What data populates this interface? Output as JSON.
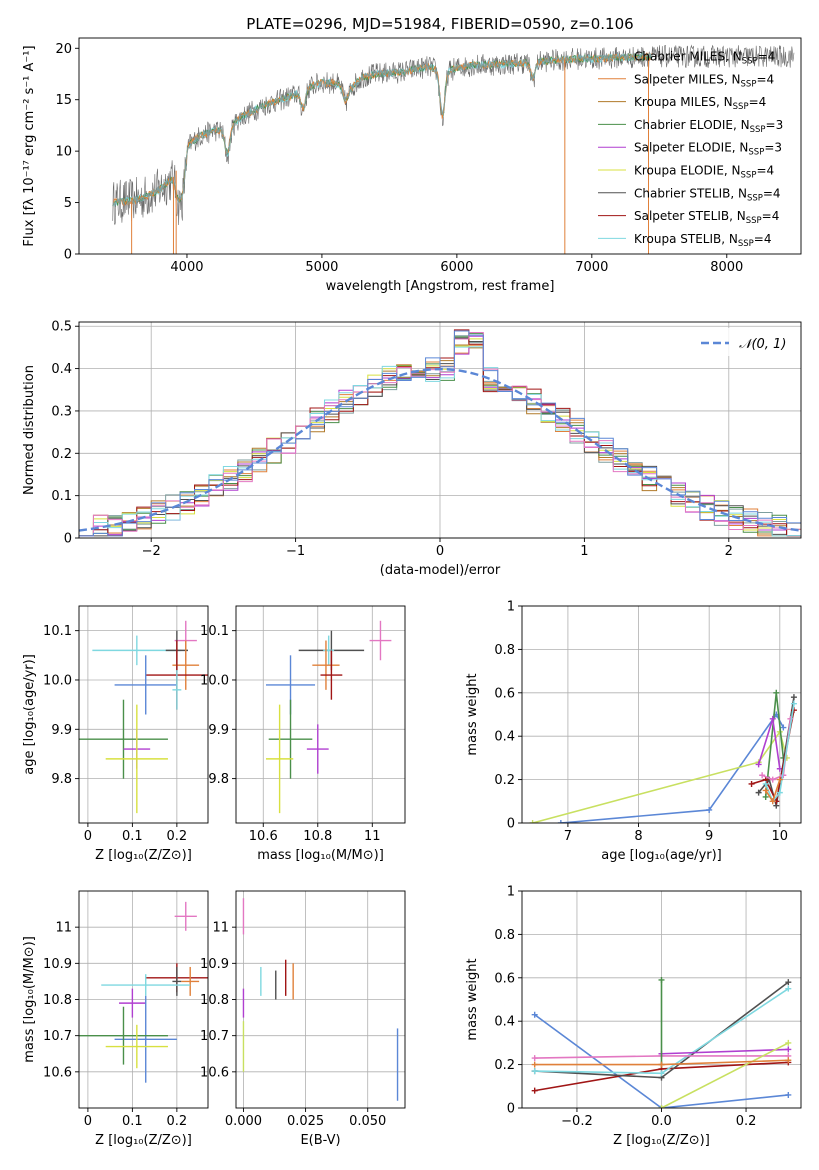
{
  "colors": {
    "c_miles": "#7e9e9e",
    "s_miles": "#e0803a",
    "k_miles": "#b07a2a",
    "c_elodie": "#4a8f4a",
    "s_elodie": "#b03fd0",
    "k_elodie": "#d8e040",
    "c_stelib": "#505050",
    "s_stelib": "#a01515",
    "k_stelib": "#7fd8e0",
    "blue": "#5b87d6",
    "pink": "#e377c2",
    "lime": "#c8e060",
    "cyan": "#80d8e0"
  },
  "chart_data": [
    {
      "id": "spectrum",
      "type": "line",
      "title": "PLATE=0296, MJD=51984, FIBERID=0590, z=0.106",
      "xlabel": "wavelength [Angstrom, rest frame]",
      "ylabel": "Flux [fλ 10⁻¹⁷ erg cm⁻² s⁻¹ A⁻¹]",
      "xlim": [
        3200,
        8550
      ],
      "ylim": [
        0,
        21
      ],
      "xticks": [
        4000,
        5000,
        6000,
        7000,
        8000
      ],
      "yticks": [
        0,
        5,
        10,
        15,
        20
      ],
      "grid": false,
      "legend_position": "top-right",
      "legend": [
        {
          "text": "Chabrier MILES, N",
          "sub": "SSP",
          "tail": "=4",
          "color": "c_miles"
        },
        {
          "text": "Salpeter MILES, N",
          "sub": "SSP",
          "tail": "=4",
          "color": "s_miles"
        },
        {
          "text": "Kroupa MILES, N",
          "sub": "SSP",
          "tail": "=4",
          "color": "k_miles"
        },
        {
          "text": "Chabrier ELODIE, N",
          "sub": "SSP",
          "tail": "=3",
          "color": "c_elodie"
        },
        {
          "text": "Salpeter ELODIE, N",
          "sub": "SSP",
          "tail": "=3",
          "color": "s_elodie"
        },
        {
          "text": "Kroupa ELODIE, N",
          "sub": "SSP",
          "tail": "=4",
          "color": "k_elodie"
        },
        {
          "text": "Chabrier STELIB, N",
          "sub": "SSP",
          "tail": "=4",
          "color": "c_stelib"
        },
        {
          "text": "Salpeter STELIB, N",
          "sub": "SSP",
          "tail": "=4",
          "color": "s_stelib"
        },
        {
          "text": "Kroupa STELIB, N",
          "sub": "SSP",
          "tail": "=4",
          "color": "k_stelib"
        }
      ],
      "continuum": {
        "x": [
          3450,
          3600,
          3700,
          3800,
          3900,
          3950,
          4000,
          4100,
          4200,
          4300,
          4400,
          4500,
          4600,
          4700,
          4800,
          4900,
          5000,
          5100,
          5200,
          5300,
          5400,
          5500,
          5600,
          5700,
          5800,
          5900,
          6000,
          6100,
          6200,
          6300,
          6400,
          6500,
          6600,
          6700,
          6800,
          6900,
          7000,
          7100,
          7200,
          7300,
          7400
        ],
        "y": [
          5.0,
          5.2,
          5.6,
          6.3,
          7.5,
          9.0,
          10.5,
          11.5,
          12.0,
          12.0,
          13.3,
          14.0,
          14.6,
          15.0,
          15.5,
          16.2,
          16.7,
          16.6,
          15.9,
          17.2,
          17.5,
          17.6,
          17.7,
          18.0,
          18.2,
          17.6,
          18.1,
          18.3,
          18.4,
          18.4,
          18.5,
          18.6,
          18.7,
          18.8,
          18.9,
          19.0,
          19.0,
          19.0,
          19.1,
          19.1,
          19.2
        ]
      },
      "absorption_dips": [
        {
          "x": 3934,
          "y": 5.5
        },
        {
          "x": 3969,
          "y": 6.0
        },
        {
          "x": 4300,
          "y": 9.5
        },
        {
          "x": 4861,
          "y": 14.0
        },
        {
          "x": 5175,
          "y": 14.8
        },
        {
          "x": 5893,
          "y": 13.0
        },
        {
          "x": 6563,
          "y": 17.0
        }
      ],
      "spikes": [
        {
          "x": 3590,
          "y": 0
        },
        {
          "x": 3900,
          "y": 0
        },
        {
          "x": 3920,
          "y": 0
        },
        {
          "x": 6800,
          "y": 0
        },
        {
          "x": 7420,
          "y": 0
        }
      ]
    },
    {
      "id": "residuals",
      "type": "step-histogram",
      "xlabel": "(data-model)/error",
      "ylabel": "Normed distribution",
      "xlim": [
        -2.5,
        2.5
      ],
      "ylim": [
        0,
        0.51
      ],
      "xticks": [
        -2,
        -1,
        0,
        1,
        2
      ],
      "yticks": [
        0.0,
        0.1,
        0.2,
        0.3,
        0.4,
        0.5
      ],
      "grid": true,
      "legend_position": "top-right",
      "reference_label": "𝒩(0, 1)",
      "reference_color": "blue",
      "bin_width": 0.1,
      "bin_start": -2.5,
      "series": [
        {
          "name": "Chabrier MILES",
          "color": "c_miles"
        },
        {
          "name": "Salpeter MILES",
          "color": "s_miles"
        },
        {
          "name": "Kroupa MILES",
          "color": "k_miles"
        },
        {
          "name": "Chabrier ELODIE",
          "color": "c_elodie"
        },
        {
          "name": "Salpeter ELODIE",
          "color": "s_elodie"
        },
        {
          "name": "Kroupa ELODIE",
          "color": "k_elodie"
        },
        {
          "name": "Chabrier STELIB",
          "color": "c_stelib"
        },
        {
          "name": "Salpeter STELIB",
          "color": "s_stelib"
        },
        {
          "name": "Kroupa STELIB",
          "color": "k_stelib"
        },
        {
          "name": "pink",
          "color": "pink"
        },
        {
          "name": "blue",
          "color": "blue"
        }
      ]
    },
    {
      "id": "age_vs_Z",
      "type": "errorbar",
      "xlabel": "Z [log₁₀(Z/Z⊙)]",
      "ylabel": "age  [log₁₀(age/yr)]",
      "xlim": [
        -0.02,
        0.27
      ],
      "ylim": [
        9.71,
        10.15
      ],
      "xticks": [
        0.0,
        0.1,
        0.2
      ],
      "ytick_labels": [
        "9.8",
        "9.9",
        "10.0",
        "10.1"
      ],
      "yticks": [
        9.8,
        9.9,
        10.0,
        10.1
      ],
      "grid": true,
      "points": [
        {
          "x": 0.22,
          "y": 10.08,
          "xe": 0.025,
          "ye": 0.04,
          "color": "pink"
        },
        {
          "x": 0.11,
          "y": 10.06,
          "xe": 0.1,
          "ye": 0.03,
          "color": "k_stelib"
        },
        {
          "x": 0.2,
          "y": 10.06,
          "xe": 0.025,
          "ye": 0.04,
          "color": "c_stelib"
        },
        {
          "x": 0.22,
          "y": 10.03,
          "xe": 0.03,
          "ye": 0.05,
          "color": "s_miles"
        },
        {
          "x": 0.2,
          "y": 10.01,
          "xe": 0.07,
          "ye": 0.07,
          "color": "s_stelib"
        },
        {
          "x": 0.13,
          "y": 9.99,
          "xe": 0.07,
          "ye": 0.06,
          "color": "blue"
        },
        {
          "x": 0.2,
          "y": 9.98,
          "xe": 0.01,
          "ye": 0.04,
          "color": "k_stelib"
        },
        {
          "x": 0.08,
          "y": 9.88,
          "xe": 0.1,
          "ye": 0.08,
          "color": "c_elodie"
        },
        {
          "x": 0.11,
          "y": 9.86,
          "xe": 0.03,
          "ye": 0.04,
          "color": "s_elodie"
        },
        {
          "x": 0.11,
          "y": 9.84,
          "xe": 0.07,
          "ye": 0.11,
          "color": "k_elodie"
        }
      ]
    },
    {
      "id": "age_vs_mass",
      "type": "errorbar",
      "xlabel": "mass [log₁₀(M/M⊙)]",
      "ylabel": "",
      "xlim": [
        10.5,
        11.12
      ],
      "ylim": [
        9.71,
        10.15
      ],
      "xticks": [
        10.6,
        10.8,
        11.0
      ],
      "ytick_labels": [
        "9.8",
        "9.9",
        "10.0",
        "10.1"
      ],
      "yticks": [
        9.8,
        9.9,
        10.0,
        10.1
      ],
      "grid": true,
      "points": [
        {
          "x": 11.03,
          "y": 10.08,
          "xe": 0.04,
          "ye": 0.04,
          "color": "pink"
        },
        {
          "x": 10.85,
          "y": 10.06,
          "xe": 0.12,
          "ye": 0.04,
          "color": "c_stelib"
        },
        {
          "x": 10.84,
          "y": 10.06,
          "xe": 0.02,
          "ye": 0.03,
          "color": "k_stelib"
        },
        {
          "x": 10.83,
          "y": 10.03,
          "xe": 0.05,
          "ye": 0.05,
          "color": "s_miles"
        },
        {
          "x": 10.85,
          "y": 10.01,
          "xe": 0.04,
          "ye": 0.05,
          "color": "s_stelib"
        },
        {
          "x": 10.7,
          "y": 9.99,
          "xe": 0.09,
          "ye": 0.06,
          "color": "blue"
        },
        {
          "x": 10.7,
          "y": 9.88,
          "xe": 0.08,
          "ye": 0.08,
          "color": "c_elodie"
        },
        {
          "x": 10.8,
          "y": 9.86,
          "xe": 0.04,
          "ye": 0.05,
          "color": "s_elodie"
        },
        {
          "x": 10.66,
          "y": 9.84,
          "xe": 0.05,
          "ye": 0.11,
          "color": "k_elodie"
        }
      ]
    },
    {
      "id": "weight_vs_age",
      "type": "line",
      "xlabel": "age  [log₁₀(age/yr)]",
      "ylabel": "mass weight",
      "xlim": [
        6.35,
        10.3
      ],
      "ylim": [
        0,
        1
      ],
      "xticks": [
        7,
        8,
        9,
        10
      ],
      "yticks": [
        0.0,
        0.2,
        0.4,
        0.6,
        0.8,
        1.0
      ],
      "grid": true,
      "series": [
        {
          "color": "blue",
          "x": [
            6.9,
            9.0,
            9.95,
            10.05
          ],
          "y": [
            0.0,
            0.06,
            0.5,
            0.44
          ]
        },
        {
          "color": "lime",
          "x": [
            6.5,
            9.7,
            10.0,
            10.1
          ],
          "y": [
            0.0,
            0.28,
            0.42,
            0.3
          ]
        },
        {
          "color": "c_elodie",
          "x": [
            9.8,
            9.95,
            10.05
          ],
          "y": [
            0.12,
            0.6,
            0.3
          ]
        },
        {
          "color": "s_elodie",
          "x": [
            9.7,
            9.9,
            10.0
          ],
          "y": [
            0.27,
            0.48,
            0.25
          ]
        },
        {
          "color": "c_stelib",
          "x": [
            9.7,
            9.85,
            9.95,
            10.2
          ],
          "y": [
            0.14,
            0.2,
            0.08,
            0.58
          ]
        },
        {
          "color": "s_stelib",
          "x": [
            9.6,
            9.8,
            9.95,
            10.2
          ],
          "y": [
            0.18,
            0.2,
            0.1,
            0.52
          ]
        },
        {
          "color": "pink",
          "x": [
            9.75,
            9.9,
            10.05,
            10.15
          ],
          "y": [
            0.22,
            0.2,
            0.22,
            0.48
          ]
        },
        {
          "color": "k_stelib",
          "x": [
            9.8,
            9.9,
            10.0,
            10.2
          ],
          "y": [
            0.18,
            0.1,
            0.14,
            0.55
          ]
        },
        {
          "color": "s_miles",
          "x": [
            9.8,
            9.9,
            10.0
          ],
          "y": [
            0.15,
            0.1,
            0.2
          ]
        }
      ]
    },
    {
      "id": "mass_vs_Z",
      "type": "errorbar",
      "xlabel": "Z [log₁₀(Z/Z⊙)]",
      "ylabel": "mass [log₁₀(M/M⊙)]",
      "xlim": [
        -0.02,
        0.27
      ],
      "ylim": [
        10.5,
        11.1
      ],
      "xticks": [
        0.0,
        0.1,
        0.2
      ],
      "yticks": [
        10.6,
        10.7,
        10.8,
        10.9,
        11.0
      ],
      "grid": true,
      "points": [
        {
          "x": 0.22,
          "y": 11.03,
          "xe": 0.025,
          "ye": 0.04,
          "color": "pink"
        },
        {
          "x": 0.2,
          "y": 10.86,
          "xe": 0.07,
          "ye": 0.04,
          "color": "s_stelib"
        },
        {
          "x": 0.2,
          "y": 10.85,
          "xe": 0.01,
          "ye": 0.04,
          "color": "c_stelib"
        },
        {
          "x": 0.23,
          "y": 10.85,
          "xe": 0.02,
          "ye": 0.04,
          "color": "s_miles"
        },
        {
          "x": 0.13,
          "y": 10.84,
          "xe": 0.1,
          "ye": 0.03,
          "color": "k_stelib"
        },
        {
          "x": 0.1,
          "y": 10.79,
          "xe": 0.03,
          "ye": 0.04,
          "color": "s_elodie"
        },
        {
          "x": 0.13,
          "y": 10.69,
          "xe": 0.07,
          "ye": 0.12,
          "color": "blue"
        },
        {
          "x": 0.08,
          "y": 10.7,
          "xe": 0.1,
          "ye": 0.08,
          "color": "c_elodie"
        },
        {
          "x": 0.11,
          "y": 10.67,
          "xe": 0.07,
          "ye": 0.06,
          "color": "k_elodie"
        }
      ]
    },
    {
      "id": "mass_vs_EBV",
      "type": "errorbar",
      "xlabel": "E(B-V)",
      "ylabel": "",
      "xlim": [
        -0.003,
        0.065
      ],
      "ylim": [
        10.5,
        11.1
      ],
      "xticks": [
        0.0,
        0.025,
        0.05
      ],
      "xtick_labels": [
        "0.000",
        "0.025",
        "0.050"
      ],
      "yticks": [
        10.6,
        10.7,
        10.8,
        10.9,
        11.0
      ],
      "grid": true,
      "points": [
        {
          "x": 0.0,
          "y": 11.03,
          "xe": 0,
          "ye": 0.05,
          "color": "pink"
        },
        {
          "x": 0.0,
          "y": 10.79,
          "xe": 0,
          "ye": 0.04,
          "color": "s_elodie"
        },
        {
          "x": 0.0,
          "y": 10.67,
          "xe": 0,
          "ye": 0.07,
          "color": "lime"
        },
        {
          "x": 0.007,
          "y": 10.85,
          "xe": 0,
          "ye": 0.04,
          "color": "k_stelib"
        },
        {
          "x": 0.013,
          "y": 10.84,
          "xe": 0,
          "ye": 0.04,
          "color": "c_stelib"
        },
        {
          "x": 0.017,
          "y": 10.86,
          "xe": 0,
          "ye": 0.05,
          "color": "s_stelib"
        },
        {
          "x": 0.02,
          "y": 10.85,
          "xe": 0,
          "ye": 0.05,
          "color": "s_miles"
        },
        {
          "x": 0.062,
          "y": 10.62,
          "xe": 0,
          "ye": 0.1,
          "color": "blue"
        }
      ]
    },
    {
      "id": "weight_vs_Z",
      "type": "line",
      "xlabel": "Z [log₁₀(Z/Z⊙)]",
      "ylabel": "mass weight",
      "xlim": [
        -0.33,
        0.33
      ],
      "ylim": [
        0,
        1
      ],
      "xticks": [
        -0.2,
        0.0,
        0.2
      ],
      "xtick_labels": [
        "−0.2",
        "0.0",
        "0.2"
      ],
      "yticks": [
        0.0,
        0.2,
        0.4,
        0.6,
        0.8,
        1.0
      ],
      "grid": true,
      "series": [
        {
          "color": "blue",
          "x": [
            -0.3,
            0.0,
            0.3
          ],
          "y": [
            0.43,
            0.0,
            0.06
          ]
        },
        {
          "color": "s_stelib",
          "x": [
            -0.3,
            0.0,
            0.3
          ],
          "y": [
            0.08,
            0.18,
            0.21
          ]
        },
        {
          "color": "c_stelib",
          "x": [
            -0.3,
            0.0,
            0.3
          ],
          "y": [
            0.17,
            0.14,
            0.58
          ]
        },
        {
          "color": "k_stelib",
          "x": [
            -0.3,
            0.0,
            0.3
          ],
          "y": [
            0.17,
            0.16,
            0.55
          ]
        },
        {
          "color": "pink",
          "x": [
            -0.3,
            0.0,
            0.3
          ],
          "y": [
            0.23,
            0.24,
            0.24
          ]
        },
        {
          "color": "s_elodie",
          "x": [
            0.0,
            0.3
          ],
          "y": [
            0.25,
            0.27
          ]
        },
        {
          "color": "lime",
          "x": [
            0.0,
            0.3
          ],
          "y": [
            0.0,
            0.3
          ]
        },
        {
          "color": "c_elodie",
          "x": [
            0.0,
            0.0
          ],
          "y": [
            0.59,
            0.2
          ]
        },
        {
          "color": "s_miles",
          "x": [
            -0.3,
            0.0,
            0.3
          ],
          "y": [
            0.2,
            0.2,
            0.22
          ]
        }
      ]
    }
  ]
}
